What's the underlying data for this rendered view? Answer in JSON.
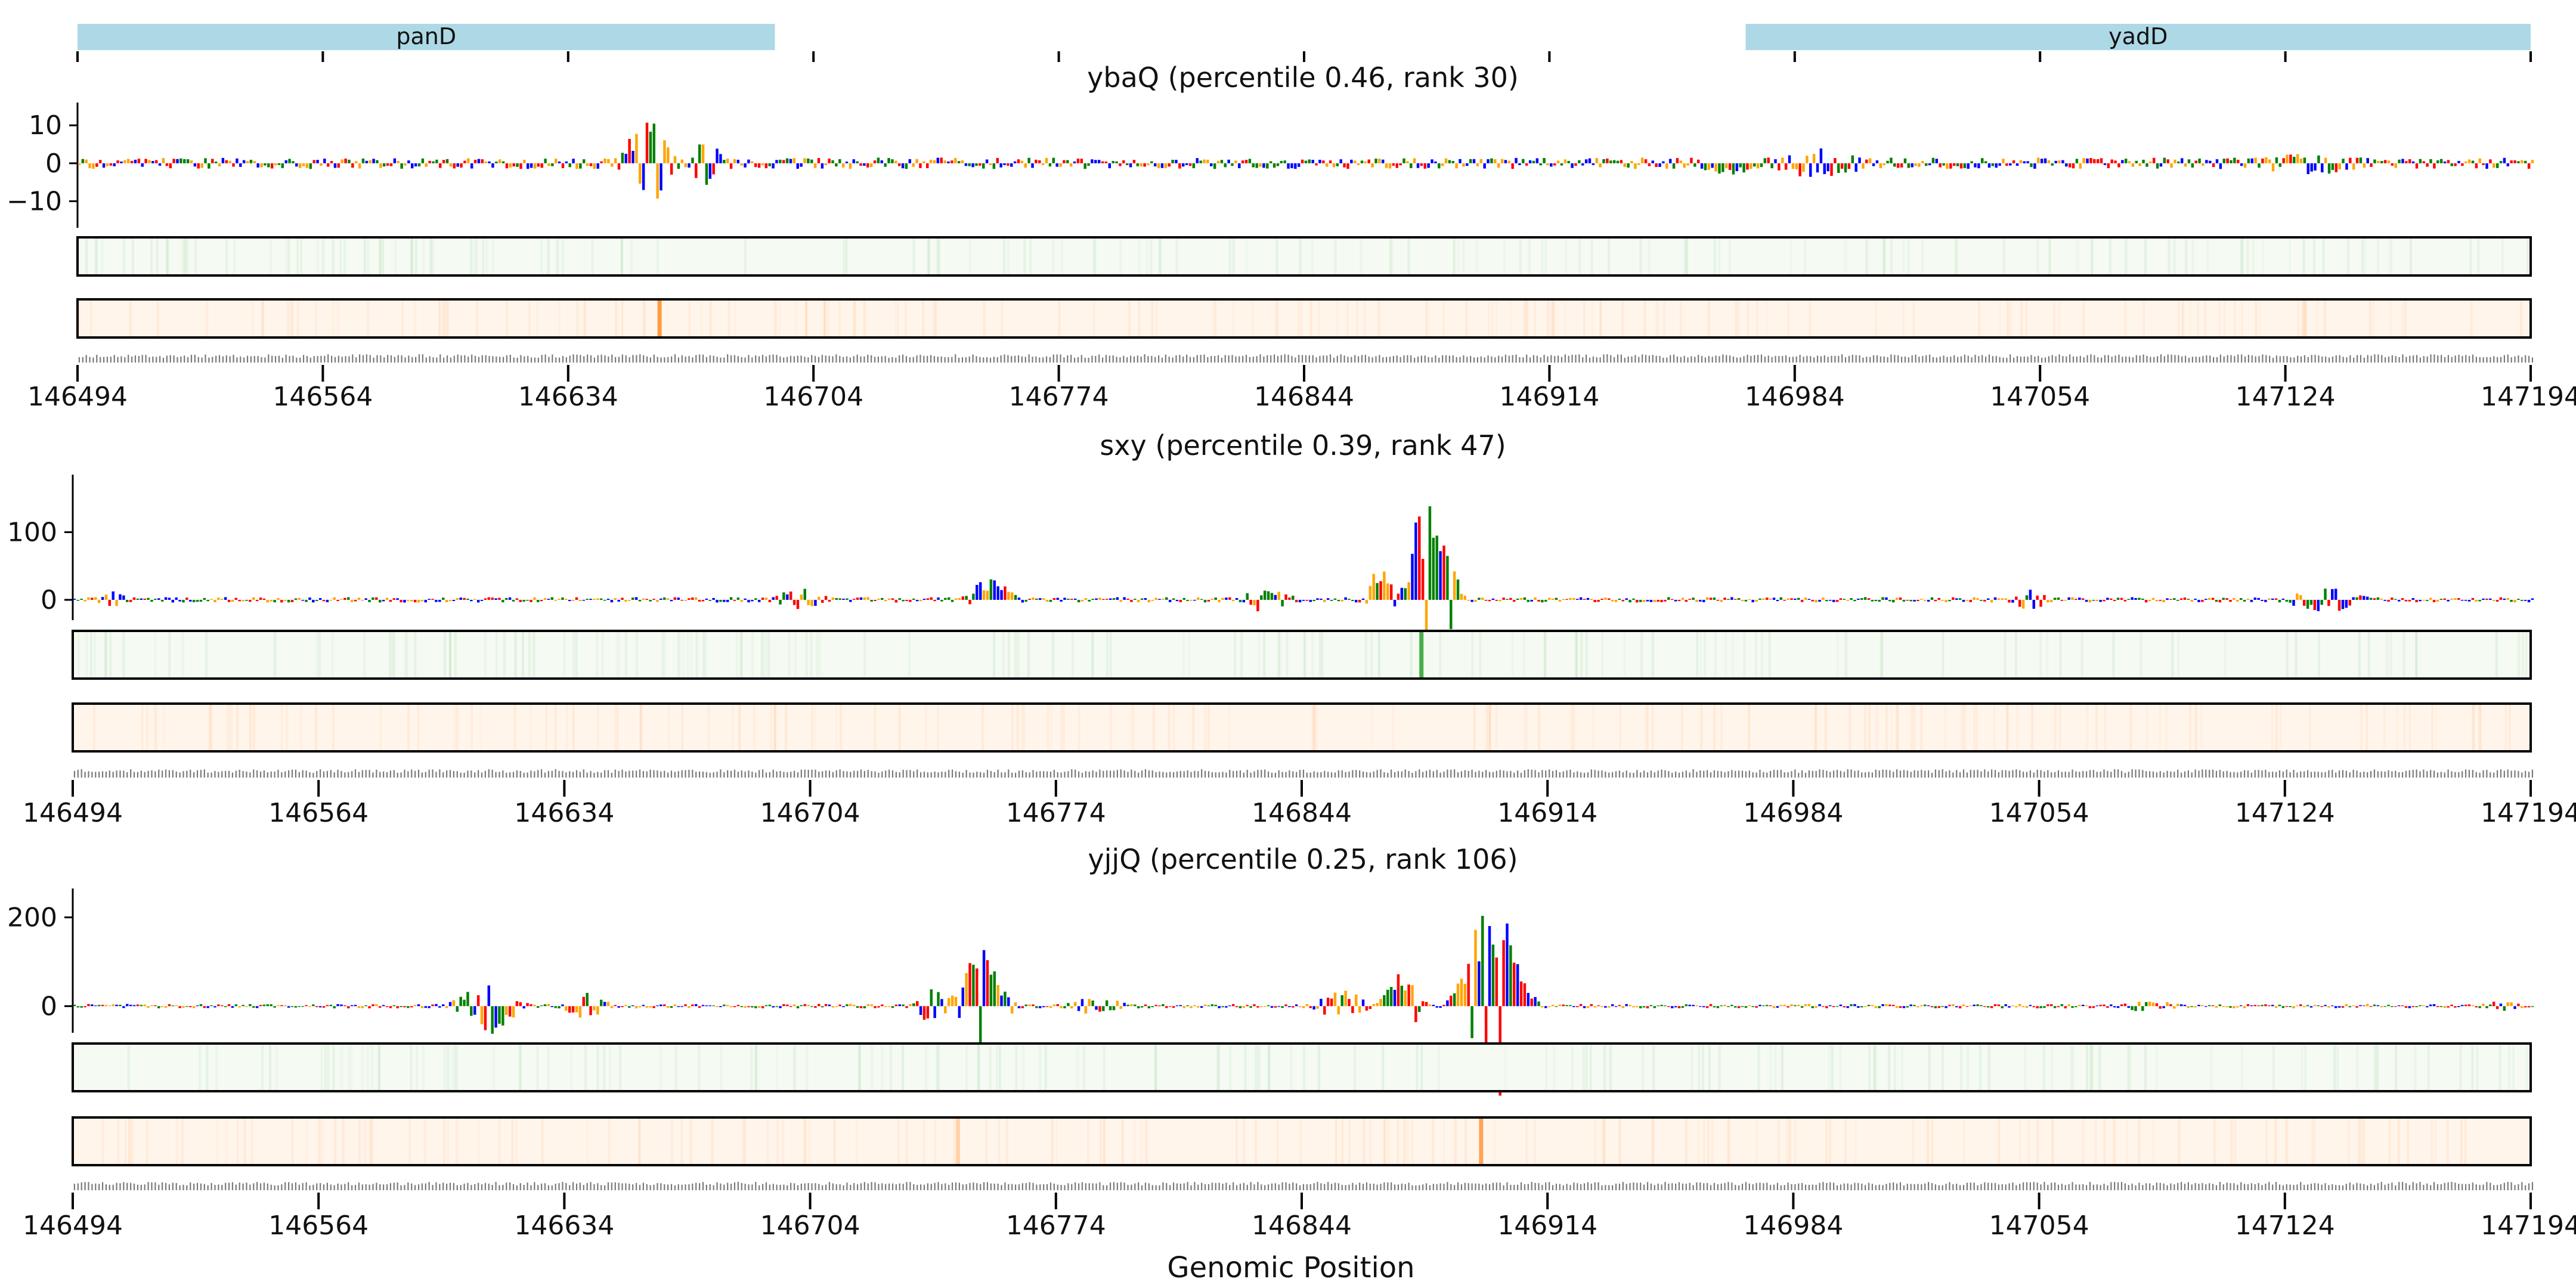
{
  "colors": {
    "A": "#008000",
    "C": "#0000ff",
    "G": "#ffa500",
    "T": "#ff0000",
    "gene_bar": "#add8e6",
    "attr_heat": "#2ca02c",
    "attr_heat_bg": "#f5faf3",
    "var_heat": "#ff7f0e",
    "var_heat_bg": "#fff5eb"
  },
  "chart_data": {
    "type": "sequence-logo",
    "genomic_range": [
      146494,
      147194
    ],
    "x_ticks": [
      146494,
      146564,
      146634,
      146704,
      146774,
      146844,
      146914,
      146984,
      147054,
      147124,
      147194
    ],
    "x_tick_labels": [
      "146494",
      "146564",
      "146634",
      "146704",
      "146774",
      "146844",
      "146914",
      "146984",
      "147054",
      "147124",
      "147194"
    ],
    "xlabel": "Genomic Position",
    "genes": [
      {
        "name": "panD",
        "start": 146494,
        "end": 146693
      },
      {
        "name": "yadD",
        "start": 146970,
        "end": 147194
      }
    ],
    "panels": [
      {
        "title": "ybaQ (percentile 0.46, rank 30)",
        "ylim": [
          -17,
          16
        ],
        "y_ticks": [
          -10,
          0,
          10
        ],
        "y_tick_labels": [
          "−10",
          "0",
          "10"
        ],
        "baseline_amp": 1.5,
        "peaks": [
          {
            "center": 146656,
            "width": 6,
            "amp": 13,
            "sign": "mixed"
          },
          {
            "center": 146673,
            "width": 4,
            "amp": 7,
            "sign": "mixed"
          },
          {
            "center": 146990,
            "width": 15,
            "amp": 4,
            "sign": "mixed"
          },
          {
            "center": 146965,
            "width": 10,
            "amp": 3,
            "sign": "negative"
          },
          {
            "center": 147130,
            "width": 20,
            "amp": 3,
            "sign": "mixed"
          }
        ],
        "attr_heat_spikes": [],
        "var_heat_spikes": [
          {
            "pos": 146660,
            "strength": 0.9
          }
        ]
      },
      {
        "title": "sxy (percentile 0.39, rank 47)",
        "ylim": [
          -30,
          185
        ],
        "y_ticks": [
          0,
          100
        ],
        "y_tick_labels": [
          "0",
          "100"
        ],
        "baseline_amp": 4,
        "peaks": [
          {
            "center": 146880,
            "width": 6,
            "amp": 180,
            "sign": "positive"
          },
          {
            "center": 146866,
            "width": 3,
            "amp": 65,
            "sign": "positive"
          },
          {
            "center": 146755,
            "width": 6,
            "amp": 35,
            "sign": "positive"
          },
          {
            "center": 146833,
            "width": 8,
            "amp": 18,
            "sign": "mixed"
          },
          {
            "center": 146700,
            "width": 8,
            "amp": 18,
            "sign": "mixed"
          },
          {
            "center": 147050,
            "width": 6,
            "amp": 16,
            "sign": "mixed"
          },
          {
            "center": 147135,
            "width": 10,
            "amp": 20,
            "sign": "mixed"
          },
          {
            "center": 146505,
            "width": 4,
            "amp": 14,
            "sign": "mixed"
          }
        ],
        "attr_heat_spikes": [
          {
            "pos": 146878,
            "strength": 1.0
          }
        ],
        "var_heat_spikes": []
      },
      {
        "title": "yjjQ (percentile 0.25, rank 106)",
        "ylim": [
          -60,
          265
        ],
        "y_ticks": [
          0,
          200
        ],
        "y_tick_labels": [
          "0",
          "200"
        ],
        "baseline_amp": 5,
        "peaks": [
          {
            "center": 146898,
            "width": 8,
            "amp": 255,
            "sign": "positive"
          },
          {
            "center": 146752,
            "width": 6,
            "amp": 175,
            "sign": "positive"
          },
          {
            "center": 146738,
            "width": 5,
            "amp": 40,
            "sign": "mixed"
          },
          {
            "center": 146612,
            "width": 8,
            "amp": 65,
            "sign": "mixed"
          },
          {
            "center": 146640,
            "width": 6,
            "amp": 30,
            "sign": "mixed"
          },
          {
            "center": 146872,
            "width": 5,
            "amp": 75,
            "sign": "positive"
          },
          {
            "center": 146855,
            "width": 6,
            "amp": 45,
            "sign": "mixed"
          },
          {
            "center": 146784,
            "width": 10,
            "amp": 20,
            "sign": "mixed"
          },
          {
            "center": 147085,
            "width": 8,
            "amp": 15,
            "sign": "mixed"
          },
          {
            "center": 147185,
            "width": 6,
            "amp": 12,
            "sign": "mixed"
          }
        ],
        "attr_heat_spikes": [],
        "var_heat_spikes": [
          {
            "pos": 146746,
            "strength": 0.35
          },
          {
            "pos": 146895,
            "strength": 0.8
          }
        ]
      }
    ]
  }
}
